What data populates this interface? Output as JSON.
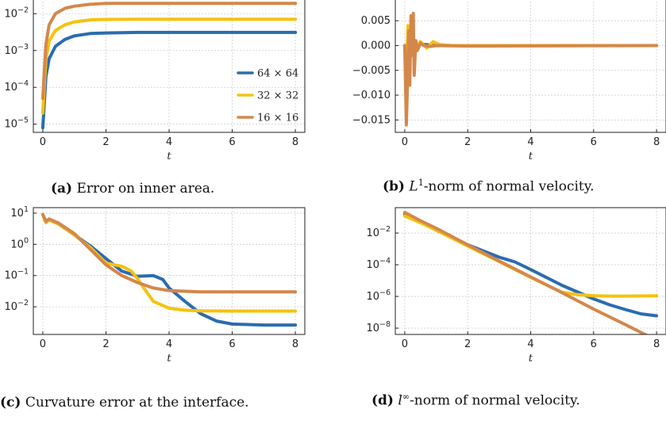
{
  "captions": [
    {
      "tag": "(a)",
      "text": "Error on inner area."
    },
    {
      "tag": "(b)",
      "pre": "L",
      "sup": "1",
      "text": "-norm of normal velocity."
    },
    {
      "tag": "(c)",
      "text": "Curvature error at the interface."
    },
    {
      "tag": "(d)",
      "pre": "l",
      "sup": "∞",
      "text": "-norm of normal velocity."
    }
  ],
  "colors": {
    "64x64": "#2b6cb0",
    "32x32": "#f5c20f",
    "16x16": "#d4874a"
  },
  "chart_data": [
    {
      "type": "line",
      "id": "a",
      "title": "",
      "xlabel": "t",
      "ylabel": "",
      "yscale": "log",
      "xlim": [
        -0.3,
        8.3
      ],
      "ylim": [
        6e-06,
        0.026
      ],
      "xticks": [
        0,
        2,
        4,
        6,
        8
      ],
      "yticks": [
        {
          "v": 0.01,
          "b": "10",
          "e": "−2"
        },
        {
          "v": 0.001,
          "b": "10",
          "e": "−3"
        },
        {
          "v": 0.0001,
          "b": "10",
          "e": "−4"
        },
        {
          "v": 1e-05,
          "b": "10",
          "e": "−5"
        }
      ],
      "legend": {
        "position": "right",
        "entries": [
          "64 × 64",
          "32 × 32",
          "16 × 16"
        ]
      },
      "series": [
        {
          "name": "64 × 64",
          "color": "#2b6cb0",
          "x": [
            0,
            0.02,
            0.05,
            0.1,
            0.2,
            0.4,
            0.7,
            1,
            1.5,
            2,
            3,
            4,
            6,
            8
          ],
          "y": [
            8e-06,
            1.5e-05,
            4e-05,
            0.0002,
            0.0006,
            0.0013,
            0.002,
            0.0025,
            0.0029,
            0.003,
            0.0031,
            0.0031,
            0.0031,
            0.0031
          ]
        },
        {
          "name": "32 × 32",
          "color": "#f5c20f",
          "x": [
            0,
            0.02,
            0.05,
            0.1,
            0.2,
            0.4,
            0.7,
            1,
            1.5,
            2,
            3,
            4,
            6,
            8
          ],
          "y": [
            2e-05,
            4e-05,
            0.00012,
            0.0006,
            0.0018,
            0.0035,
            0.005,
            0.006,
            0.0068,
            0.007,
            0.0071,
            0.0071,
            0.0071,
            0.0071
          ]
        },
        {
          "name": "16 × 16",
          "color": "#d4874a",
          "x": [
            0,
            0.02,
            0.05,
            0.1,
            0.2,
            0.4,
            0.7,
            1,
            1.5,
            2,
            3,
            4,
            6,
            8
          ],
          "y": [
            5e-05,
            0.0001,
            0.0003,
            0.0015,
            0.005,
            0.01,
            0.014,
            0.016,
            0.018,
            0.019,
            0.019,
            0.019,
            0.019,
            0.019
          ]
        }
      ]
    },
    {
      "type": "line",
      "id": "b",
      "title": "",
      "xlabel": "t",
      "ylabel": "",
      "yscale": "linear",
      "xlim": [
        -0.3,
        8.3
      ],
      "ylim": [
        -0.0175,
        0.0095
      ],
      "xticks": [
        0,
        2,
        4,
        6,
        8
      ],
      "yticks": [
        {
          "v": 0.005,
          "t": "0.005"
        },
        {
          "v": 0,
          "t": "0.000"
        },
        {
          "v": -0.005,
          "t": "−0.005"
        },
        {
          "v": -0.01,
          "t": "−0.010"
        },
        {
          "v": -0.015,
          "t": "−0.015"
        }
      ],
      "series": [
        {
          "name": "64 × 64",
          "color": "#2b6cb0",
          "x": [
            0,
            0.05,
            0.1,
            0.15,
            0.2,
            0.3,
            0.5,
            1,
            2,
            8
          ],
          "y": [
            0,
            -0.004,
            0.002,
            -0.001,
            0.001,
            -0.0005,
            0.0003,
            0,
            0,
            0
          ]
        },
        {
          "name": "32 × 32",
          "color": "#f5c20f",
          "x": [
            0,
            0.05,
            0.1,
            0.15,
            0.2,
            0.3,
            0.5,
            0.7,
            0.9,
            1.1,
            1.5,
            2,
            8
          ],
          "y": [
            0,
            -0.006,
            0.004,
            -0.002,
            0.002,
            -0.001,
            0.0008,
            -0.0005,
            0.0008,
            0.0002,
            0,
            0,
            0
          ]
        },
        {
          "name": "16 × 16",
          "color": "#d4874a",
          "x": [
            0,
            0.05,
            0.1,
            0.13,
            0.16,
            0.2,
            0.23,
            0.27,
            0.3,
            0.35,
            0.4,
            0.5,
            0.6,
            0.8,
            1,
            2,
            8
          ],
          "y": [
            0,
            -0.016,
            -0.004,
            0.003,
            -0.008,
            0.006,
            -0.002,
            0.0065,
            -0.006,
            0.001,
            -0.001,
            0.0005,
            0,
            -0.0002,
            0,
            -0.0001,
            0
          ]
        }
      ]
    },
    {
      "type": "line",
      "id": "c",
      "title": "",
      "xlabel": "t",
      "ylabel": "",
      "yscale": "log",
      "xlim": [
        -0.3,
        8.3
      ],
      "ylim": [
        0.0013,
        15
      ],
      "xticks": [
        0,
        2,
        4,
        6,
        8
      ],
      "yticks": [
        {
          "v": 10,
          "b": "10",
          "e": "1"
        },
        {
          "v": 1,
          "b": "10",
          "e": "0"
        },
        {
          "v": 0.1,
          "b": "10",
          "e": "−1"
        },
        {
          "v": 0.01,
          "b": "10",
          "e": "−2"
        }
      ],
      "series": [
        {
          "name": "64 × 64",
          "color": "#2b6cb0",
          "x": [
            0,
            0.1,
            0.2,
            0.5,
            1,
            1.5,
            2,
            2.5,
            3,
            3.5,
            3.8,
            4,
            4.5,
            5,
            5.5,
            6,
            7,
            8
          ],
          "y": [
            9,
            5,
            6,
            4.5,
            2,
            0.9,
            0.35,
            0.14,
            0.095,
            0.1,
            0.075,
            0.04,
            0.015,
            0.006,
            0.0035,
            0.0028,
            0.0026,
            0.0026
          ]
        },
        {
          "name": "32 × 32",
          "color": "#f5c20f",
          "x": [
            0,
            0.1,
            0.2,
            0.5,
            1,
            1.5,
            2,
            2.5,
            2.8,
            3,
            3.2,
            3.5,
            4,
            4.5,
            5,
            6,
            7,
            8
          ],
          "y": [
            9,
            5,
            6,
            4.5,
            2,
            0.8,
            0.25,
            0.2,
            0.14,
            0.08,
            0.04,
            0.015,
            0.009,
            0.0078,
            0.0074,
            0.0073,
            0.0073,
            0.0073
          ]
        },
        {
          "name": "16 × 16",
          "color": "#d4874a",
          "x": [
            0,
            0.1,
            0.2,
            0.5,
            1,
            1.5,
            2,
            2.5,
            3,
            3.5,
            4,
            5,
            6,
            8
          ],
          "y": [
            9,
            5.5,
            6.5,
            4.8,
            2.2,
            0.7,
            0.22,
            0.1,
            0.06,
            0.04,
            0.033,
            0.03,
            0.03,
            0.03
          ]
        }
      ]
    },
    {
      "type": "line",
      "id": "d",
      "title": "",
      "xlabel": "t",
      "ylabel": "",
      "yscale": "log",
      "xlim": [
        -0.3,
        8.3
      ],
      "ylim": [
        4e-09,
        0.4
      ],
      "xticks": [
        0,
        2,
        4,
        6,
        8
      ],
      "yticks": [
        {
          "v": 0.01,
          "b": "10",
          "e": "−2"
        },
        {
          "v": 0.0001,
          "b": "10",
          "e": "−4"
        },
        {
          "v": 1e-06,
          "b": "10",
          "e": "−6"
        },
        {
          "v": 1e-08,
          "b": "10",
          "e": "−8"
        }
      ],
      "series": [
        {
          "name": "64 × 64",
          "color": "#2b6cb0",
          "x": [
            0,
            0.5,
            1,
            2,
            3,
            3.5,
            4,
            5,
            6,
            6.5,
            7,
            7.5,
            8
          ],
          "y": [
            0.15,
            0.05,
            0.015,
            0.0018,
            0.0003,
            0.00015,
            5e-05,
            5e-06,
            7e-07,
            3e-07,
            1.5e-07,
            8e-08,
            6e-08
          ]
        },
        {
          "name": "32 × 32",
          "color": "#f5c20f",
          "x": [
            0,
            0.5,
            1,
            2,
            3,
            4,
            5,
            5.5,
            6,
            6.5,
            7,
            8
          ],
          "y": [
            0.12,
            0.045,
            0.015,
            0.0015,
            0.00016,
            1.6e-05,
            1.8e-06,
            1.3e-06,
            1.1e-06,
            1.05e-06,
            1.05e-06,
            1.1e-06
          ]
        },
        {
          "name": "16 × 16",
          "color": "#d4874a",
          "x": [
            0,
            0.5,
            1,
            2,
            3,
            4,
            5,
            6,
            7,
            8
          ],
          "y": [
            0.2,
            0.06,
            0.02,
            0.0018,
            0.00017,
            1.7e-05,
            1.7e-06,
            1.6e-07,
            1.7e-08,
            1.7e-09
          ]
        }
      ]
    }
  ]
}
